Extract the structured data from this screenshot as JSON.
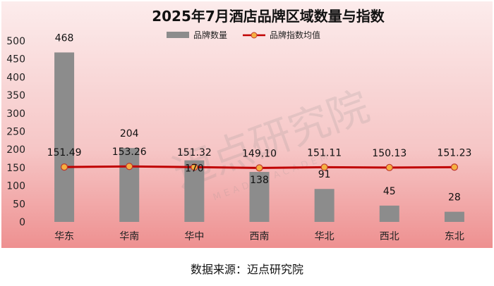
{
  "chart_data": {
    "type": "bar",
    "title": "2025年7月酒店品牌区域数量与指数",
    "categories": [
      "华东",
      "华南",
      "华中",
      "西南",
      "华北",
      "西北",
      "东北"
    ],
    "series": [
      {
        "name": "品牌数量",
        "type": "bar",
        "values": [
          468,
          204,
          170,
          138,
          91,
          45,
          28
        ],
        "color": "#8c8c8c"
      },
      {
        "name": "品牌指数均值",
        "type": "line",
        "values": [
          151.49,
          153.26,
          151.32,
          149.1,
          151.11,
          150.13,
          151.23
        ],
        "color": "#c00000",
        "marker_color": "#f5b041"
      }
    ],
    "ylim": [
      0,
      500
    ],
    "yticks": [
      0,
      50,
      100,
      150,
      200,
      250,
      300,
      350,
      400,
      450,
      500
    ],
    "grid": false,
    "legend": "top-center"
  },
  "watermark": {
    "text": "迈点研究院",
    "subtext": "MEADIN ACADEMY"
  },
  "source_text": "数据来源：迈点研究院",
  "colors": {
    "background_top": "#fcecec",
    "background_bottom": "#ee9090"
  }
}
